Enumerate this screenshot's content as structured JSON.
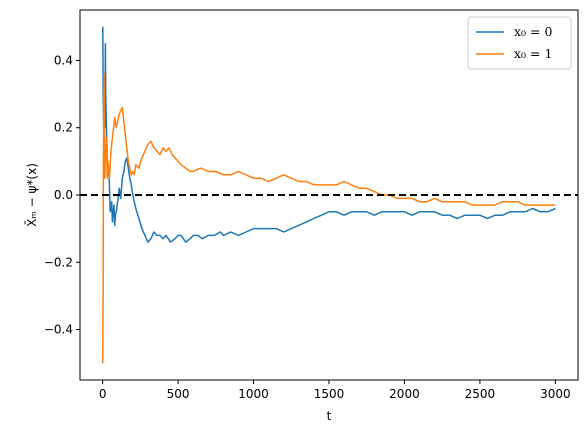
{
  "chart_data": {
    "type": "line",
    "xlabel": "t",
    "ylabel": "X̄ₘ − ψ*(x)",
    "xlim": [
      -150,
      3150
    ],
    "ylim": [
      -0.55,
      0.55
    ],
    "xticks": [
      0,
      500,
      1000,
      1500,
      2000,
      2500,
      3000
    ],
    "xtick_labels": [
      "0",
      "500",
      "1000",
      "1500",
      "2000",
      "2500",
      "3000"
    ],
    "yticks": [
      -0.4,
      -0.2,
      0.0,
      0.2,
      0.4
    ],
    "ytick_labels": [
      "−0.4",
      "−0.2",
      "0.0",
      "0.2",
      "0.4"
    ],
    "reference_line": {
      "y": 0.0,
      "style": "dashed",
      "color": "#000000"
    },
    "legend_position": "top-right",
    "grid": false,
    "series": [
      {
        "name": "x₀ = 0",
        "color": "#1f77b4",
        "x": [
          1,
          4,
          8,
          10,
          12,
          15,
          18,
          20,
          24,
          28,
          30,
          35,
          40,
          45,
          50,
          55,
          60,
          65,
          70,
          75,
          80,
          85,
          90,
          100,
          110,
          120,
          130,
          140,
          150,
          160,
          170,
          180,
          190,
          200,
          220,
          240,
          260,
          280,
          300,
          320,
          340,
          360,
          380,
          400,
          420,
          450,
          480,
          500,
          520,
          550,
          580,
          600,
          630,
          660,
          700,
          740,
          780,
          800,
          850,
          900,
          950,
          1000,
          1050,
          1100,
          1150,
          1200,
          1250,
          1300,
          1350,
          1400,
          1450,
          1500,
          1550,
          1600,
          1650,
          1700,
          1750,
          1800,
          1850,
          1900,
          1950,
          2000,
          2050,
          2100,
          2150,
          2200,
          2250,
          2300,
          2350,
          2400,
          2450,
          2500,
          2550,
          2600,
          2650,
          2700,
          2750,
          2800,
          2850,
          2900,
          2950,
          3000
        ],
        "y": [
          0.5,
          0.3,
          0.17,
          0.25,
          0.35,
          0.2,
          0.45,
          0.3,
          0.22,
          0.15,
          0.1,
          0.06,
          0.08,
          0.03,
          -0.05,
          -0.04,
          -0.02,
          -0.08,
          -0.05,
          -0.03,
          -0.09,
          -0.06,
          -0.05,
          -0.02,
          0.02,
          -0.01,
          0.05,
          0.07,
          0.1,
          0.11,
          0.08,
          0.05,
          0.03,
          0.0,
          -0.04,
          -0.07,
          -0.1,
          -0.12,
          -0.14,
          -0.13,
          -0.11,
          -0.12,
          -0.12,
          -0.13,
          -0.12,
          -0.14,
          -0.13,
          -0.12,
          -0.12,
          -0.14,
          -0.13,
          -0.12,
          -0.12,
          -0.13,
          -0.12,
          -0.12,
          -0.11,
          -0.12,
          -0.11,
          -0.12,
          -0.11,
          -0.1,
          -0.1,
          -0.1,
          -0.1,
          -0.11,
          -0.1,
          -0.09,
          -0.08,
          -0.07,
          -0.06,
          -0.05,
          -0.05,
          -0.06,
          -0.05,
          -0.05,
          -0.05,
          -0.06,
          -0.05,
          -0.05,
          -0.05,
          -0.05,
          -0.06,
          -0.05,
          -0.05,
          -0.05,
          -0.06,
          -0.06,
          -0.07,
          -0.06,
          -0.06,
          -0.06,
          -0.07,
          -0.06,
          -0.06,
          -0.05,
          -0.05,
          -0.05,
          -0.04,
          -0.05,
          -0.05,
          -0.04
        ],
        "label_x": 0
      },
      {
        "name": "x₀ = 1",
        "color": "#ff7f0e",
        "x": [
          1,
          3,
          5,
          8,
          10,
          12,
          15,
          18,
          20,
          25,
          30,
          35,
          40,
          45,
          50,
          55,
          60,
          65,
          70,
          75,
          80,
          90,
          100,
          110,
          120,
          130,
          140,
          150,
          160,
          170,
          180,
          190,
          200,
          210,
          220,
          240,
          260,
          280,
          300,
          320,
          340,
          360,
          380,
          400,
          420,
          440,
          460,
          480,
          500,
          520,
          550,
          580,
          600,
          650,
          700,
          750,
          800,
          850,
          900,
          950,
          1000,
          1050,
          1100,
          1150,
          1200,
          1250,
          1300,
          1350,
          1400,
          1450,
          1500,
          1550,
          1600,
          1650,
          1700,
          1750,
          1800,
          1850,
          1900,
          1950,
          2000,
          2050,
          2100,
          2150,
          2200,
          2250,
          2300,
          2350,
          2400,
          2450,
          2500,
          2550,
          2600,
          2650,
          2700,
          2750,
          2800,
          2850,
          2900,
          2950,
          3000
        ],
        "y": [
          -0.5,
          -0.3,
          0.1,
          0.25,
          0.36,
          0.2,
          0.05,
          0.15,
          0.1,
          0.17,
          0.05,
          0.1,
          0.07,
          0.05,
          0.09,
          0.13,
          0.15,
          0.17,
          0.19,
          0.21,
          0.23,
          0.2,
          0.22,
          0.24,
          0.25,
          0.26,
          0.22,
          0.18,
          0.14,
          0.1,
          0.08,
          0.06,
          0.07,
          0.06,
          0.09,
          0.08,
          0.11,
          0.13,
          0.15,
          0.16,
          0.14,
          0.13,
          0.12,
          0.14,
          0.13,
          0.14,
          0.12,
          0.11,
          0.1,
          0.09,
          0.08,
          0.07,
          0.07,
          0.08,
          0.07,
          0.07,
          0.06,
          0.06,
          0.07,
          0.06,
          0.05,
          0.05,
          0.04,
          0.05,
          0.06,
          0.05,
          0.04,
          0.04,
          0.03,
          0.03,
          0.03,
          0.03,
          0.04,
          0.03,
          0.02,
          0.02,
          0.01,
          0.0,
          0.0,
          -0.01,
          -0.01,
          -0.01,
          -0.02,
          -0.02,
          -0.01,
          -0.02,
          -0.02,
          -0.02,
          -0.02,
          -0.03,
          -0.03,
          -0.03,
          -0.03,
          -0.02,
          -0.02,
          -0.02,
          -0.03,
          -0.03,
          -0.03,
          -0.03,
          -0.03
        ],
        "label_x": 1
      }
    ]
  }
}
